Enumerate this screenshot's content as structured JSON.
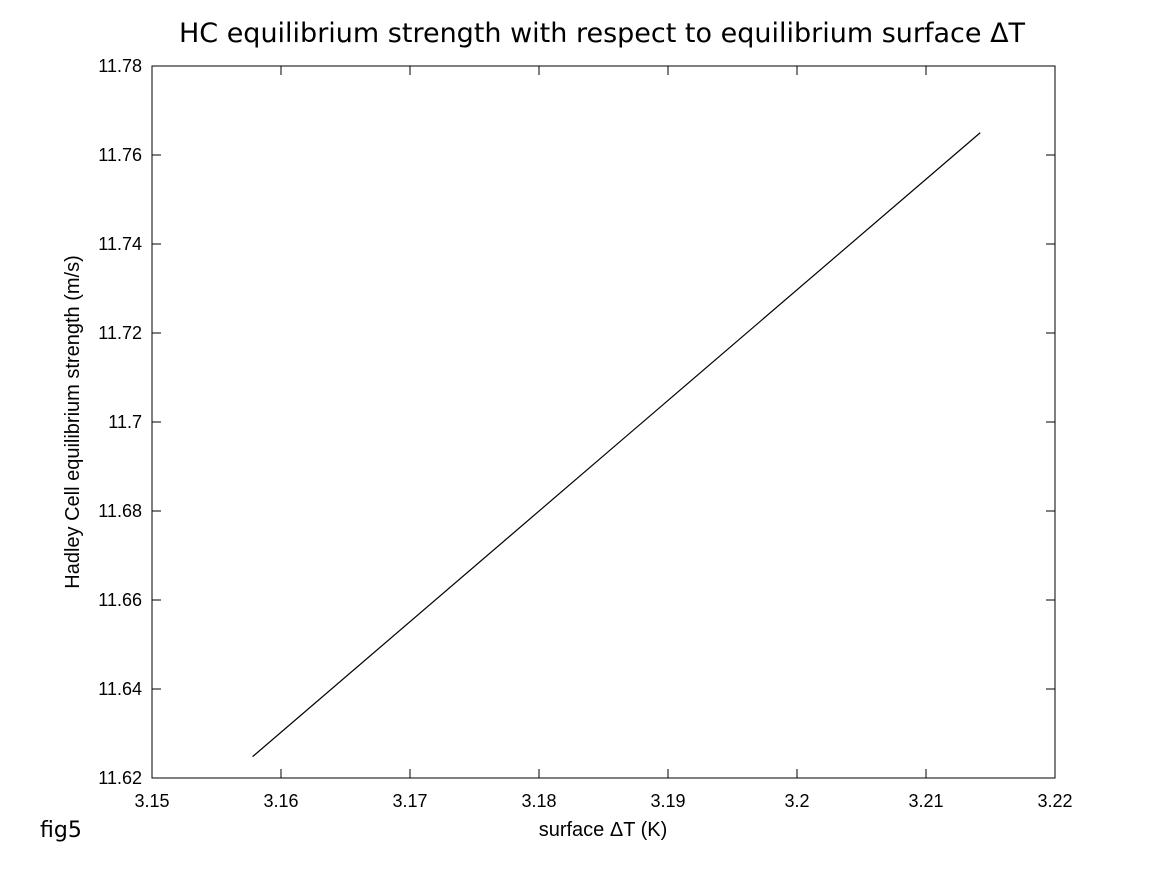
{
  "figure_label": "fig5",
  "chart_data": {
    "type": "line",
    "title": "HC equilibrium strength with respect to equilibrium surface ΔT",
    "xlabel": "surface ΔT (K)",
    "ylabel": "Hadley Cell equilibrium strength (m/s)",
    "xlim": [
      3.15,
      3.22
    ],
    "ylim": [
      11.62,
      11.78
    ],
    "xticks": [
      3.15,
      3.16,
      3.17,
      3.18,
      3.19,
      3.2,
      3.21,
      3.22
    ],
    "xtick_labels": [
      "3.15",
      "3.16",
      "3.17",
      "3.18",
      "3.19",
      "3.2",
      "3.21",
      "3.22"
    ],
    "yticks": [
      11.62,
      11.64,
      11.66,
      11.68,
      11.7,
      11.72,
      11.74,
      11.76,
      11.78
    ],
    "ytick_labels": [
      "11.62",
      "11.64",
      "11.66",
      "11.68",
      "11.7",
      "11.72",
      "11.74",
      "11.76",
      "11.78"
    ],
    "grid": false,
    "series": [
      {
        "color": "#000000",
        "x": [
          3.1578,
          3.2142
        ],
        "y": [
          11.6248,
          11.765
        ]
      }
    ]
  }
}
